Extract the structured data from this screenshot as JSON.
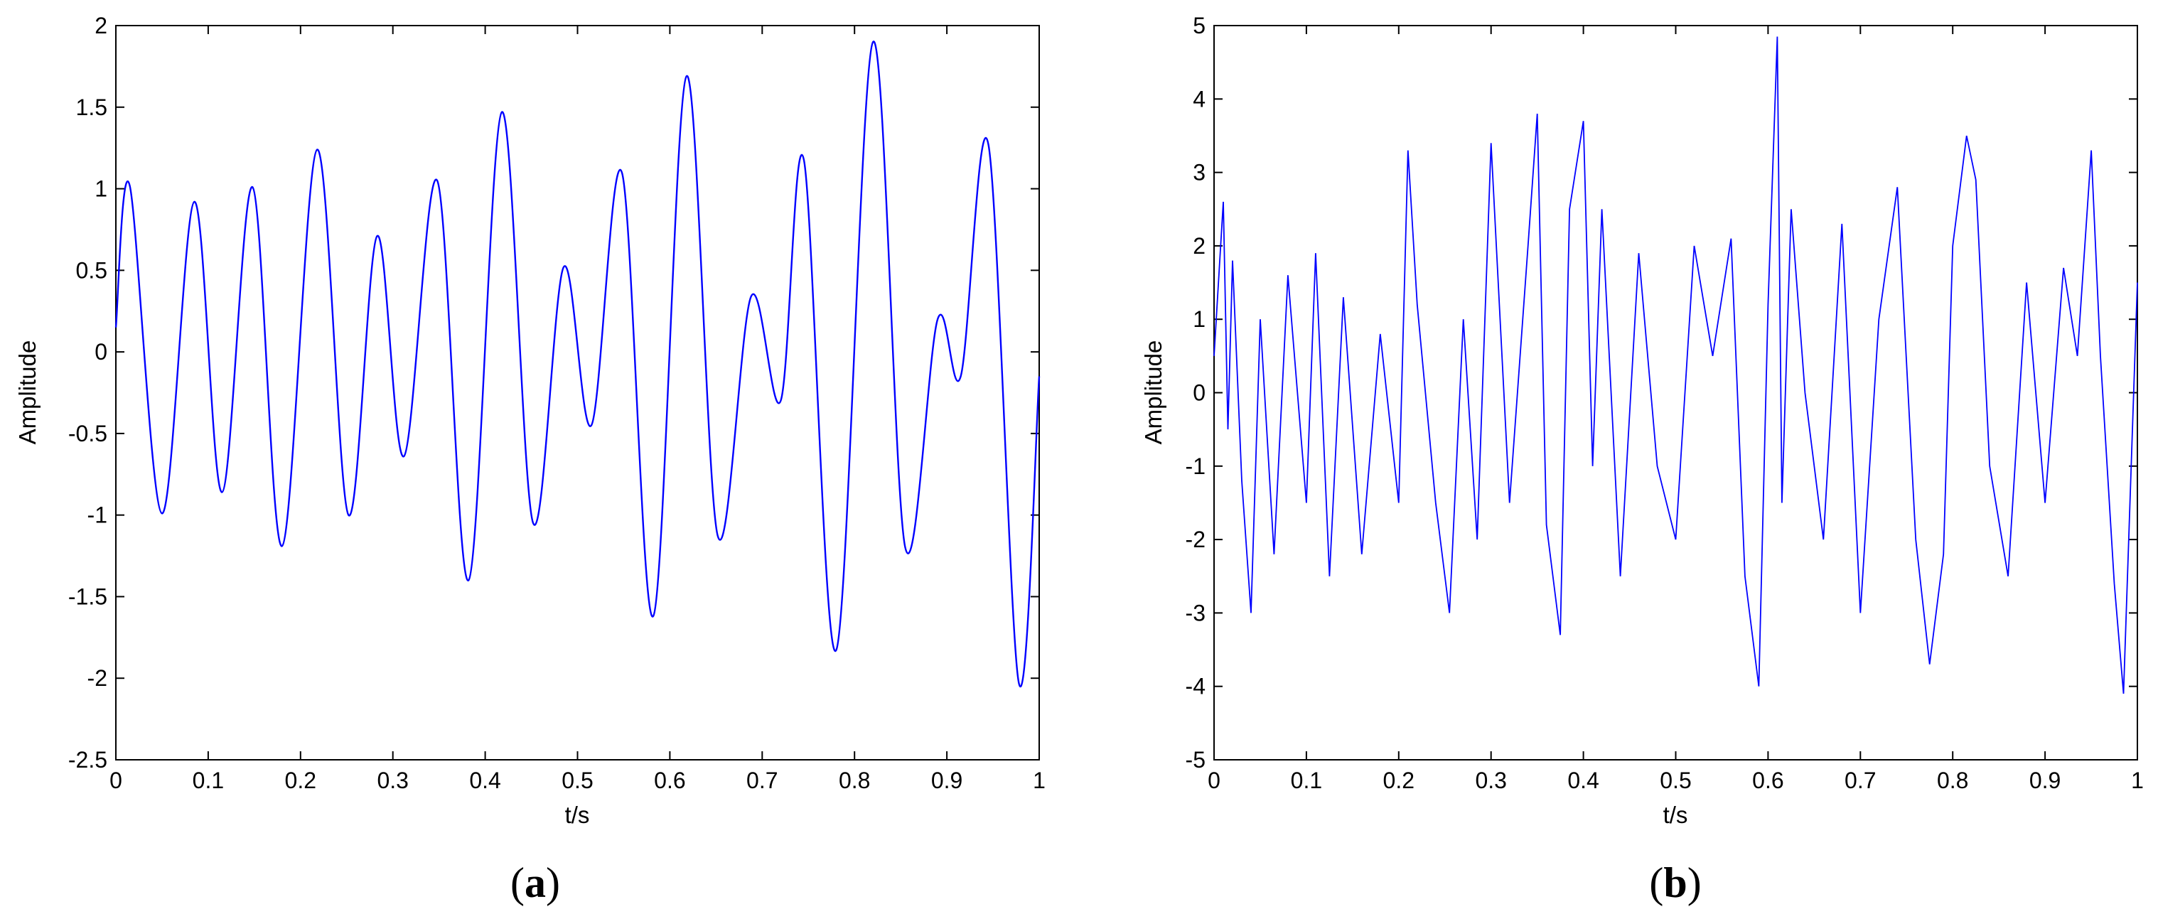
{
  "chart_data": [
    {
      "type": "line",
      "panel_label": "a",
      "xlabel": "t/s",
      "ylabel": "Amplitude",
      "xlim": [
        0,
        1
      ],
      "ylim": [
        -2.5,
        2
      ],
      "xticks": [
        "0",
        "0.1",
        "0.2",
        "0.3",
        "0.4",
        "0.5",
        "0.6",
        "0.7",
        "0.8",
        "0.9",
        "1"
      ],
      "yticks": [
        "-2.5",
        "-2",
        "-1.5",
        "-1",
        "-0.5",
        "0",
        "0.5",
        "1",
        "1.5",
        "2"
      ],
      "grid": false,
      "color": "#0000ff",
      "series": [
        {
          "x": [
            0,
            0.015,
            0.05,
            0.085,
            0.115,
            0.148,
            0.18,
            0.218,
            0.252,
            0.283,
            0.312,
            0.348,
            0.382,
            0.418,
            0.452,
            0.485,
            0.515,
            0.548,
            0.582,
            0.618,
            0.652,
            0.688,
            0.72,
            0.745,
            0.78,
            0.82,
            0.855,
            0.89,
            0.915,
            0.945,
            0.978,
            1.0
          ],
          "values": [
            0.15,
            1.02,
            -0.99,
            0.92,
            -0.86,
            1.01,
            -1.19,
            1.24,
            -1.0,
            0.71,
            -0.64,
            1.05,
            -1.4,
            1.47,
            -1.05,
            0.52,
            -0.45,
            1.1,
            -1.62,
            1.69,
            -1.13,
            0.34,
            -0.3,
            1.18,
            -1.83,
            1.9,
            -1.2,
            0.2,
            -0.15,
            1.27,
            -2.03,
            -0.15
          ]
        }
      ]
    },
    {
      "type": "line",
      "panel_label": "b",
      "xlabel": "t/s",
      "ylabel": "Amplitude",
      "xlim": [
        0,
        1
      ],
      "ylim": [
        -5,
        5
      ],
      "xticks": [
        "0",
        "0.1",
        "0.2",
        "0.3",
        "0.4",
        "0.5",
        "0.6",
        "0.7",
        "0.8",
        "0.9",
        "1"
      ],
      "yticks": [
        "-5",
        "-4",
        "-3",
        "-2",
        "-1",
        "0",
        "1",
        "2",
        "3",
        "4",
        "5"
      ],
      "grid": false,
      "color": "#0000ff",
      "series": [
        {
          "x": [
            0,
            0.01,
            0.015,
            0.02,
            0.03,
            0.04,
            0.05,
            0.065,
            0.08,
            0.1,
            0.11,
            0.125,
            0.14,
            0.16,
            0.18,
            0.2,
            0.21,
            0.22,
            0.24,
            0.255,
            0.27,
            0.285,
            0.3,
            0.32,
            0.34,
            0.35,
            0.36,
            0.375,
            0.385,
            0.4,
            0.41,
            0.42,
            0.44,
            0.46,
            0.48,
            0.5,
            0.52,
            0.54,
            0.56,
            0.575,
            0.59,
            0.6,
            0.61,
            0.615,
            0.625,
            0.64,
            0.66,
            0.68,
            0.7,
            0.72,
            0.74,
            0.76,
            0.775,
            0.79,
            0.8,
            0.815,
            0.825,
            0.84,
            0.86,
            0.88,
            0.9,
            0.92,
            0.935,
            0.95,
            0.96,
            0.975,
            0.985,
            1.0
          ],
          "values": [
            0.5,
            2.6,
            -0.5,
            1.8,
            -1.2,
            -3.0,
            1.0,
            -2.2,
            1.6,
            -1.5,
            1.9,
            -2.5,
            1.3,
            -2.2,
            0.8,
            -1.5,
            3.3,
            1.2,
            -1.5,
            -3.0,
            1.0,
            -2.0,
            3.4,
            -1.5,
            2.0,
            3.8,
            -1.8,
            -3.3,
            2.5,
            3.7,
            -1.0,
            2.5,
            -2.5,
            1.9,
            -1.0,
            -2.0,
            2.0,
            0.5,
            2.1,
            -2.5,
            -4.0,
            1.2,
            4.85,
            -1.5,
            2.5,
            0.0,
            -2.0,
            2.3,
            -3.0,
            1.0,
            2.8,
            -2.0,
            -3.7,
            -2.2,
            2.0,
            3.5,
            2.9,
            -1.0,
            -2.5,
            1.5,
            -1.5,
            1.7,
            0.5,
            3.3,
            0.5,
            -2.6,
            -4.1,
            1.5
          ]
        }
      ]
    }
  ]
}
